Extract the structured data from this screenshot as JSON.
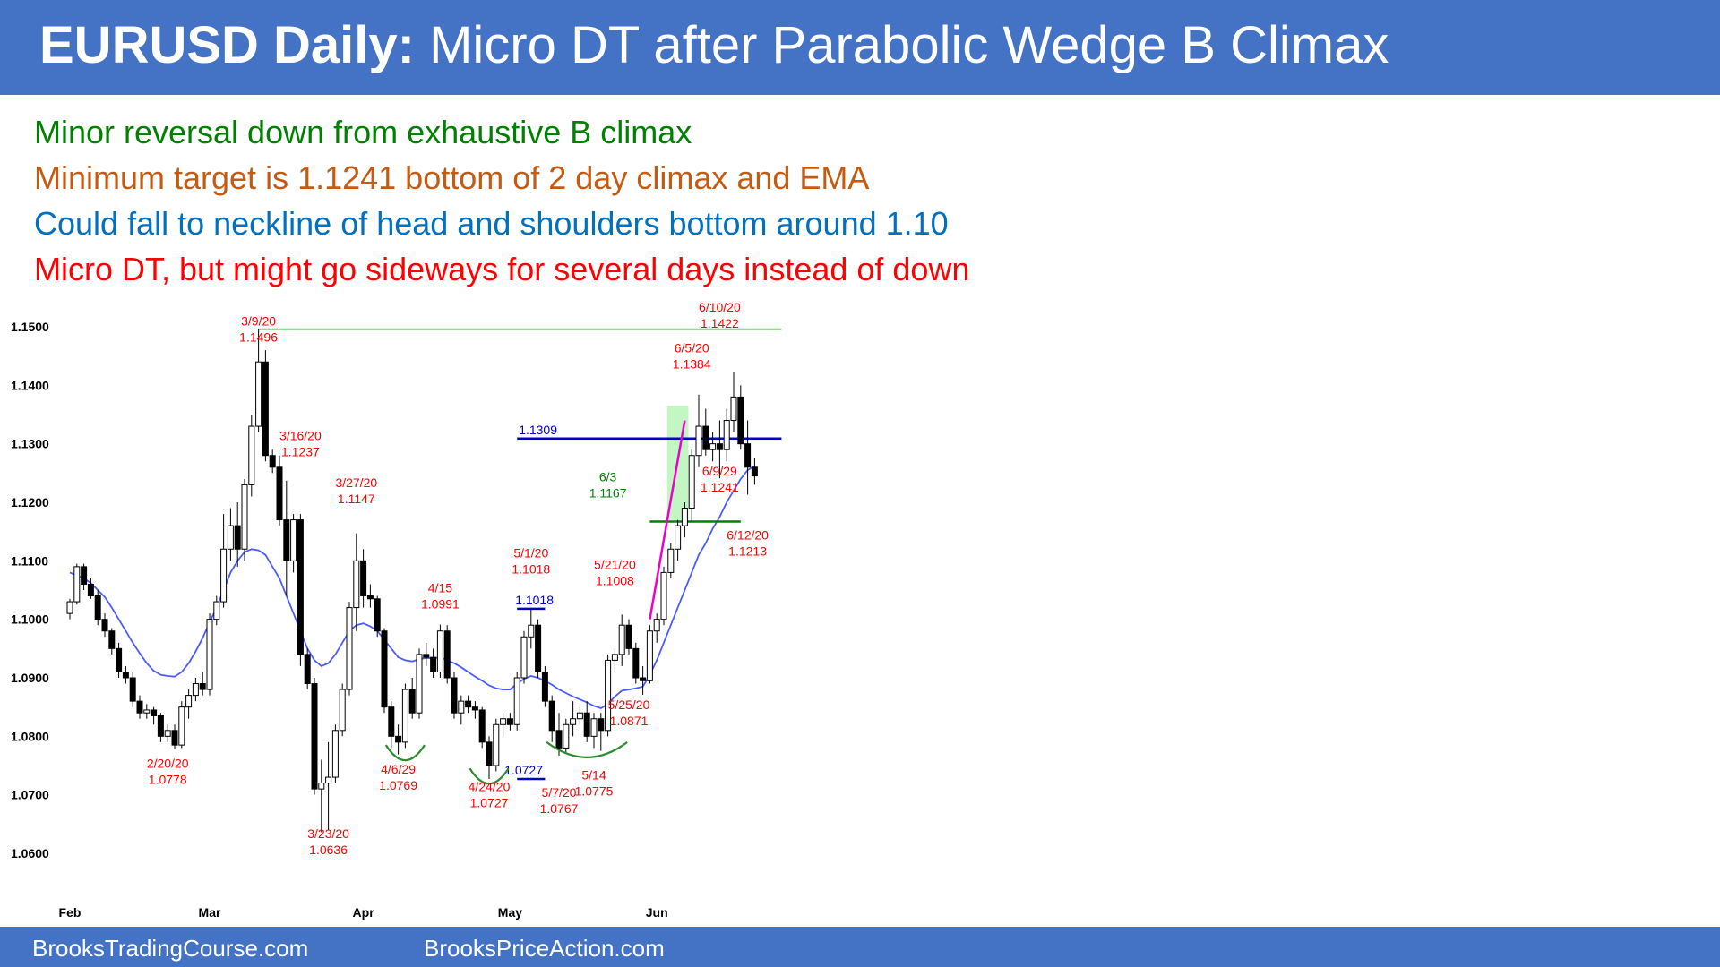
{
  "title": {
    "bold": "EURUSD Daily:",
    "rest": "Micro DT after Parabolic Wedge B Climax"
  },
  "notes": [
    {
      "text": "Minor reversal down from exhaustive B climax",
      "color": "#008000"
    },
    {
      "text": "Minimum target is 1.1241 bottom of 2 day climax and EMA",
      "color": "#c55a11"
    },
    {
      "text": "Could fall to neckline of head and shoulders bottom around 1.10",
      "color": "#0070c0"
    },
    {
      "text": "Micro DT, but might go sideways for several days instead of down",
      "color": "#ff0000"
    }
  ],
  "footer": {
    "left": "BrooksTradingCourse.com",
    "right": "BrooksPriceAction.com"
  },
  "colors": {
    "header": "#4472c4",
    "ema": "#4a5cff",
    "resistance": "#008000",
    "neckline": "#0000cc",
    "wedge": "#ee00cc",
    "annotation_red": "#ff0000",
    "annotation_green": "#008000",
    "climax_zone": "#90ee90"
  },
  "chart_data": {
    "type": "candlestick",
    "title": "EURUSD Daily",
    "ylim": [
      1.058,
      1.1525
    ],
    "y_ticks": [
      "1.1500",
      "1.1400",
      "1.1300",
      "1.1200",
      "1.1100",
      "1.1000",
      "1.0900",
      "1.0800",
      "1.0700",
      "1.0600"
    ],
    "month_labels": [
      {
        "label": "Feb",
        "index": 0
      },
      {
        "label": "Mar",
        "index": 20
      },
      {
        "label": "Apr",
        "index": 42
      },
      {
        "label": "May",
        "index": 63
      },
      {
        "label": "Jun",
        "index": 84
      }
    ],
    "candles": [
      [
        1.101,
        1.1035,
        1.1,
        1.103
      ],
      [
        1.103,
        1.1095,
        1.1025,
        1.109
      ],
      [
        1.109,
        1.1095,
        1.105,
        1.106
      ],
      [
        1.106,
        1.107,
        1.1035,
        1.104
      ],
      [
        1.104,
        1.105,
        1.099,
        1.1
      ],
      [
        1.1,
        1.101,
        1.097,
        1.098
      ],
      [
        1.098,
        1.0985,
        1.094,
        1.095
      ],
      [
        1.095,
        1.096,
        1.09,
        1.091
      ],
      [
        1.091,
        1.092,
        1.089,
        1.09
      ],
      [
        1.09,
        1.091,
        1.085,
        1.086
      ],
      [
        1.086,
        1.087,
        1.083,
        1.084
      ],
      [
        1.084,
        1.0855,
        1.083,
        1.0845
      ],
      [
        1.0845,
        1.085,
        1.082,
        1.0835
      ],
      [
        1.0835,
        1.084,
        1.079,
        1.08
      ],
      [
        1.08,
        1.082,
        1.079,
        1.081
      ],
      [
        1.081,
        1.082,
        1.0778,
        1.0785
      ],
      [
        1.0785,
        1.086,
        1.078,
        1.085
      ],
      [
        1.085,
        1.088,
        1.083,
        1.087
      ],
      [
        1.087,
        1.09,
        1.086,
        1.089
      ],
      [
        1.089,
        1.091,
        1.087,
        1.088
      ],
      [
        1.088,
        1.101,
        1.087,
        1.1
      ],
      [
        1.1,
        1.104,
        1.099,
        1.103
      ],
      [
        1.103,
        1.118,
        1.102,
        1.112
      ],
      [
        1.112,
        1.119,
        1.11,
        1.116
      ],
      [
        1.116,
        1.12,
        1.109,
        1.112
      ],
      [
        1.112,
        1.124,
        1.11,
        1.123
      ],
      [
        1.123,
        1.135,
        1.121,
        1.133
      ],
      [
        1.133,
        1.1496,
        1.132,
        1.144
      ],
      [
        1.144,
        1.146,
        1.127,
        1.128
      ],
      [
        1.128,
        1.129,
        1.125,
        1.126
      ],
      [
        1.126,
        1.128,
        1.116,
        1.117
      ],
      [
        1.117,
        1.1237,
        1.104,
        1.11
      ],
      [
        1.11,
        1.118,
        1.108,
        1.117
      ],
      [
        1.117,
        1.118,
        1.092,
        1.094
      ],
      [
        1.094,
        1.095,
        1.088,
        1.089
      ],
      [
        1.089,
        1.09,
        1.07,
        1.071
      ],
      [
        1.071,
        1.076,
        1.0636,
        1.072
      ],
      [
        1.072,
        1.079,
        1.064,
        1.073
      ],
      [
        1.073,
        1.082,
        1.072,
        1.081
      ],
      [
        1.081,
        1.089,
        1.08,
        1.088
      ],
      [
        1.088,
        1.103,
        1.087,
        1.102
      ],
      [
        1.102,
        1.1147,
        1.098,
        1.11
      ],
      [
        1.11,
        1.112,
        1.102,
        1.104
      ],
      [
        1.104,
        1.106,
        1.102,
        1.1035
      ],
      [
        1.1035,
        1.104,
        1.097,
        1.098
      ],
      [
        1.098,
        1.0985,
        1.084,
        1.085
      ],
      [
        1.085,
        1.086,
        1.078,
        1.08
      ],
      [
        1.08,
        1.082,
        1.0769,
        1.079
      ],
      [
        1.079,
        1.089,
        1.078,
        1.088
      ],
      [
        1.088,
        1.09,
        1.083,
        1.084
      ],
      [
        1.084,
        1.095,
        1.083,
        1.094
      ],
      [
        1.094,
        1.096,
        1.092,
        1.0935
      ],
      [
        1.0935,
        1.095,
        1.09,
        1.091
      ],
      [
        1.091,
        1.0991,
        1.09,
        1.098
      ],
      [
        1.098,
        1.099,
        1.089,
        1.09
      ],
      [
        1.09,
        1.091,
        1.083,
        1.084
      ],
      [
        1.084,
        1.087,
        1.082,
        1.086
      ],
      [
        1.086,
        1.087,
        1.084,
        1.085
      ],
      [
        1.085,
        1.086,
        1.083,
        1.0845
      ],
      [
        1.0845,
        1.085,
        1.078,
        1.079
      ],
      [
        1.079,
        1.08,
        1.0727,
        1.075
      ],
      [
        1.075,
        1.083,
        1.074,
        1.082
      ],
      [
        1.082,
        1.084,
        1.08,
        1.083
      ],
      [
        1.083,
        1.084,
        1.081,
        1.082
      ],
      [
        1.082,
        1.091,
        1.081,
        1.09
      ],
      [
        1.09,
        1.098,
        1.089,
        1.097
      ],
      [
        1.097,
        1.1018,
        1.095,
        1.099
      ],
      [
        1.099,
        1.1,
        1.09,
        1.091
      ],
      [
        1.091,
        1.092,
        1.085,
        1.086
      ],
      [
        1.086,
        1.087,
        1.079,
        1.081
      ],
      [
        1.081,
        1.084,
        1.0767,
        1.078
      ],
      [
        1.078,
        1.083,
        1.077,
        1.082
      ],
      [
        1.082,
        1.086,
        1.08,
        1.083
      ],
      [
        1.083,
        1.085,
        1.082,
        1.084
      ],
      [
        1.084,
        1.086,
        1.079,
        1.08
      ],
      [
        1.08,
        1.084,
        1.078,
        1.083
      ],
      [
        1.083,
        1.084,
        1.0775,
        1.081
      ],
      [
        1.081,
        1.094,
        1.08,
        1.093
      ],
      [
        1.093,
        1.095,
        1.091,
        1.094
      ],
      [
        1.094,
        1.1008,
        1.092,
        1.099
      ],
      [
        1.099,
        1.1,
        1.094,
        1.095
      ],
      [
        1.095,
        1.096,
        1.089,
        1.09
      ],
      [
        1.09,
        1.092,
        1.0871,
        1.0895
      ],
      [
        1.0895,
        1.099,
        1.089,
        1.098
      ],
      [
        1.098,
        1.101,
        1.096,
        1.1
      ],
      [
        1.1,
        1.109,
        1.099,
        1.108
      ],
      [
        1.108,
        1.113,
        1.107,
        1.112
      ],
      [
        1.112,
        1.117,
        1.11,
        1.116
      ],
      [
        1.116,
        1.12,
        1.114,
        1.119
      ],
      [
        1.119,
        1.129,
        1.1167,
        1.128
      ],
      [
        1.128,
        1.1384,
        1.126,
        1.133
      ],
      [
        1.133,
        1.136,
        1.128,
        1.129
      ],
      [
        1.129,
        1.132,
        1.127,
        1.13
      ],
      [
        1.13,
        1.134,
        1.1241,
        1.129
      ],
      [
        1.129,
        1.136,
        1.127,
        1.134
      ],
      [
        1.134,
        1.1422,
        1.132,
        1.138
      ],
      [
        1.138,
        1.14,
        1.129,
        1.13
      ],
      [
        1.13,
        1.134,
        1.1213,
        1.126
      ],
      [
        1.126,
        1.1275,
        1.123,
        1.1245
      ]
    ],
    "ema": [
      1.108,
      1.1075,
      1.107,
      1.1062,
      1.105,
      1.1038,
      1.102,
      1.1,
      1.098,
      1.096,
      1.0942,
      1.0925,
      1.0912,
      1.0905,
      1.0903,
      1.0902,
      1.091,
      1.0925,
      1.0945,
      1.0968,
      1.0995,
      1.102,
      1.105,
      1.108,
      1.11,
      1.1115,
      1.112,
      1.1118,
      1.111,
      1.109,
      1.107,
      1.104,
      1.101,
      1.098,
      1.095,
      1.093,
      1.092,
      1.0925,
      1.094,
      1.096,
      1.098,
      1.099,
      1.0993,
      1.0988,
      1.098,
      1.0965,
      1.095,
      1.0935,
      1.093,
      1.0928,
      1.0932,
      1.0934,
      1.0933,
      1.0935,
      1.093,
      1.0925,
      1.0918,
      1.091,
      1.0902,
      1.0895,
      1.0887,
      1.0882,
      1.088,
      1.088,
      1.089,
      1.0898,
      1.0903,
      1.09,
      1.0895,
      1.0888,
      1.088,
      1.0874,
      1.0868,
      1.0863,
      1.0858,
      1.0852,
      1.0848,
      1.0855,
      1.0868,
      1.0878,
      1.088,
      1.0882,
      1.0885,
      1.0905,
      1.093,
      1.096,
      1.099,
      1.102,
      1.105,
      1.108,
      1.111,
      1.113,
      1.1155,
      1.1175,
      1.12,
      1.122,
      1.124,
      1.1255,
      1.1262
    ],
    "levels": [
      {
        "label": "1.1496",
        "value": 1.1496,
        "i0": 27,
        "i1": 98,
        "color": "#008000"
      },
      {
        "label": "1.1309",
        "value": 1.1309,
        "i0": 64,
        "i1": 98,
        "color": "#0000cc"
      },
      {
        "label": "1.1167",
        "value": 1.1167,
        "i0": 83,
        "i1": 96,
        "color": "#008000"
      },
      {
        "label": "1.1018",
        "value": 1.1018,
        "i0": 64,
        "i1": 68,
        "color": "#0000cc"
      },
      {
        "label": "1.0727",
        "value": 1.0727,
        "i0": 64,
        "i1": 68,
        "color": "#0000cc"
      }
    ],
    "labels_upper": [
      {
        "date": "3/9/20",
        "price": "1.1496",
        "i": 27,
        "y": 1.1496,
        "color": "#ff0000"
      },
      {
        "date": "3/16/20",
        "price": "1.1237",
        "i": 33,
        "y": 1.13,
        "color": "#ff0000"
      },
      {
        "date": "3/27/20",
        "price": "1.1147",
        "i": 41,
        "y": 1.122,
        "color": "#ff0000"
      },
      {
        "date": "4/15",
        "price": "1.0991",
        "i": 53,
        "y": 1.104,
        "color": "#ff0000"
      },
      {
        "date": "5/1/20",
        "price": "1.1018",
        "i": 66,
        "y": 1.11,
        "color": "#ff0000"
      },
      {
        "date": "5/21/20",
        "price": "1.1008",
        "i": 78,
        "y": 1.108,
        "color": "#ff0000"
      },
      {
        "date": "6/3",
        "price": "1.1167",
        "i": 77,
        "y": 1.123,
        "color": "#008000"
      },
      {
        "date": "6/5/20",
        "price": "1.1384",
        "i": 89,
        "y": 1.145,
        "color": "#ff0000"
      },
      {
        "date": "6/10/20",
        "price": "1.1422",
        "i": 93,
        "y": 1.152,
        "color": "#ff0000"
      }
    ],
    "labels_lower": [
      {
        "date": "2/20/20",
        "price": "1.0778",
        "i": 14,
        "y": 1.074,
        "color": "#ff0000"
      },
      {
        "date": "3/23/20",
        "price": "1.0636",
        "i": 37,
        "y": 1.062,
        "color": "#ff0000"
      },
      {
        "date": "4/6/29",
        "price": "1.0769",
        "i": 47,
        "y": 1.073,
        "color": "#ff0000"
      },
      {
        "date": "4/24/20",
        "price": "1.0727",
        "i": 60,
        "y": 1.07,
        "color": "#ff0000"
      },
      {
        "date": "5/7/20",
        "price": "1.0767",
        "i": 70,
        "y": 1.069,
        "color": "#ff0000"
      },
      {
        "date": "5/14",
        "price": "1.0775",
        "i": 75,
        "y": 1.072,
        "color": "#ff0000"
      },
      {
        "date": "5/25/20",
        "price": "1.0871",
        "i": 80,
        "y": 1.084,
        "color": "#ff0000"
      },
      {
        "date": "6/9/29",
        "price": "1.1241",
        "i": 93,
        "y": 1.124,
        "color": "#ff0000"
      },
      {
        "date": "6/12/20",
        "price": "1.1213",
        "i": 97,
        "y": 1.113,
        "color": "#ff0000"
      }
    ],
    "wedge_line": {
      "from": [
        83,
        1.1
      ],
      "to": [
        88,
        1.134
      ]
    },
    "climax_zone": {
      "i0": 86,
      "i1": 88,
      "y0": 1.117,
      "y1": 1.1365
    },
    "arcs": [
      {
        "i0": 46,
        "i1": 50,
        "y": 1.0785
      },
      {
        "i0": 58,
        "i1": 62,
        "y": 1.0745
      },
      {
        "i0": 69,
        "i1": 79,
        "y": 1.079
      }
    ]
  }
}
